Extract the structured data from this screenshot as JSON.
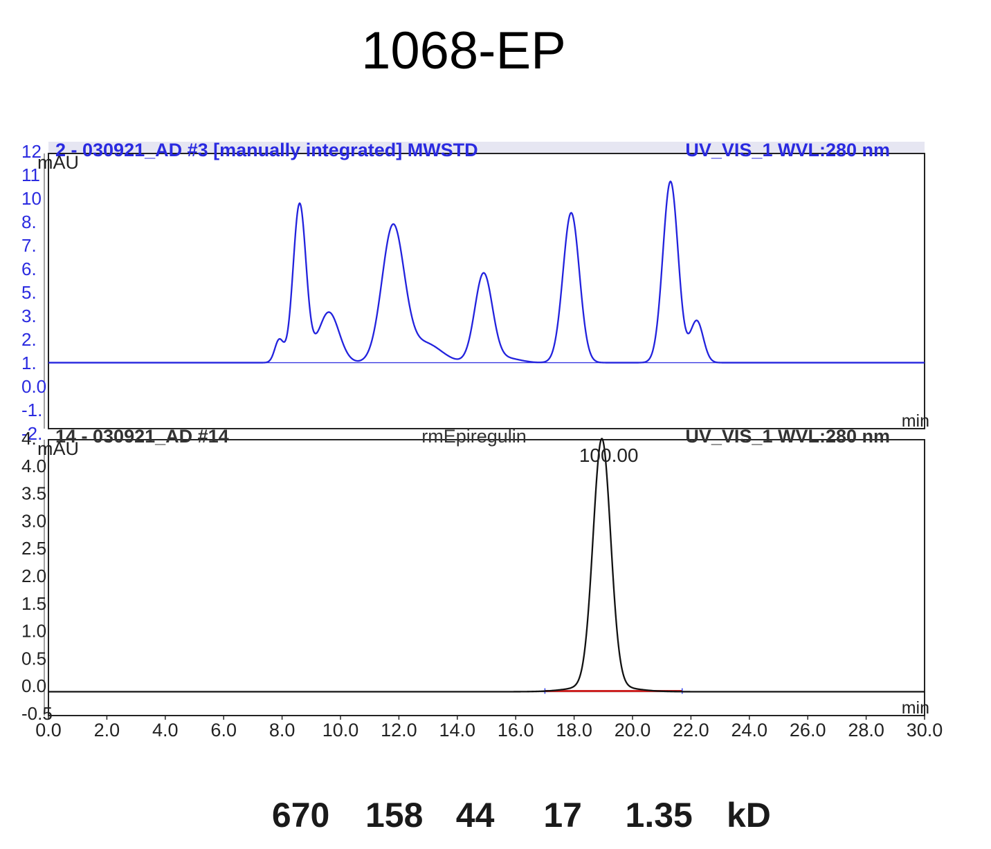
{
  "figure": {
    "title": "1068-EP",
    "mw_markers": [
      {
        "label": "670",
        "time": 8.6
      },
      {
        "label": "158",
        "time": 11.8
      },
      {
        "label": "44",
        "time": 14.9
      },
      {
        "label": "17",
        "time": 17.9
      },
      {
        "label": "1.35",
        "time": 20.7
      }
    ],
    "mw_unit": "kD"
  },
  "chart_data": [
    {
      "type": "line",
      "header_left": "2 - 030921_AD #3 [manually integrated]  MWSTD",
      "header_right": "UV_VIS_1 WVL:280 nm",
      "ylabel": "mAU",
      "xlabel": "min",
      "xlim": [
        0,
        30
      ],
      "ylim": [
        -2,
        12
      ],
      "yticks": [
        "12",
        "11",
        "10",
        "8.",
        "7.",
        "6.",
        "5.",
        "3.",
        "2.",
        "1.",
        "0.0",
        "-1.",
        "-2."
      ],
      "line_color": "#2222dd",
      "series": [
        {
          "baseline": 0.0,
          "peaks": [
            {
              "rt": 7.9,
              "height": 1.3,
              "width": 0.15
            },
            {
              "rt": 8.6,
              "height": 9.1,
              "width": 0.22
            },
            {
              "rt": 9.6,
              "height": 2.9,
              "width": 0.35
            },
            {
              "rt": 11.8,
              "height": 7.8,
              "width": 0.38
            },
            {
              "rt": 12.9,
              "height": 1.1,
              "width": 0.55
            },
            {
              "rt": 14.9,
              "height": 5.1,
              "width": 0.3
            },
            {
              "rt": 15.7,
              "height": 0.25,
              "width": 0.45
            },
            {
              "rt": 17.9,
              "height": 8.6,
              "width": 0.28
            },
            {
              "rt": 21.3,
              "height": 10.4,
              "width": 0.26
            },
            {
              "rt": 22.2,
              "height": 2.4,
              "width": 0.22
            }
          ]
        }
      ]
    },
    {
      "type": "line",
      "header_left": "14 - 030921_AD #14",
      "header_center": "rmEpiregulin",
      "header_right": "UV_VIS_1 WVL:280 nm",
      "ylabel": "mAU",
      "xlabel": "min",
      "xlim": [
        0,
        30
      ],
      "ylim": [
        -0.5,
        4.5
      ],
      "yticks": [
        "4.",
        "4.0",
        "3.5",
        "3.0",
        "2.5",
        "2.0",
        "1.5",
        "1.0",
        "0.5",
        "0.0",
        "-0.5"
      ],
      "xticks": [
        "0.0",
        "2.0",
        "4.0",
        "6.0",
        "8.0",
        "10.0",
        "12.0",
        "14.0",
        "16.0",
        "18.0",
        "20.0",
        "22.0",
        "24.0",
        "26.0",
        "28.0",
        "30.0"
      ],
      "line_color": "#111111",
      "integration_color": "#cc2222",
      "series": [
        {
          "baseline": 0.0,
          "peaks": [
            {
              "rt": 18.95,
              "height": 4.4,
              "width": 0.3
            },
            {
              "rt": 18.95,
              "height": 0.12,
              "width": 0.9
            }
          ]
        }
      ],
      "integration": {
        "start": 17.0,
        "end": 21.7
      },
      "annotations": [
        {
          "text": "100.00",
          "x": 18.95
        }
      ]
    }
  ]
}
